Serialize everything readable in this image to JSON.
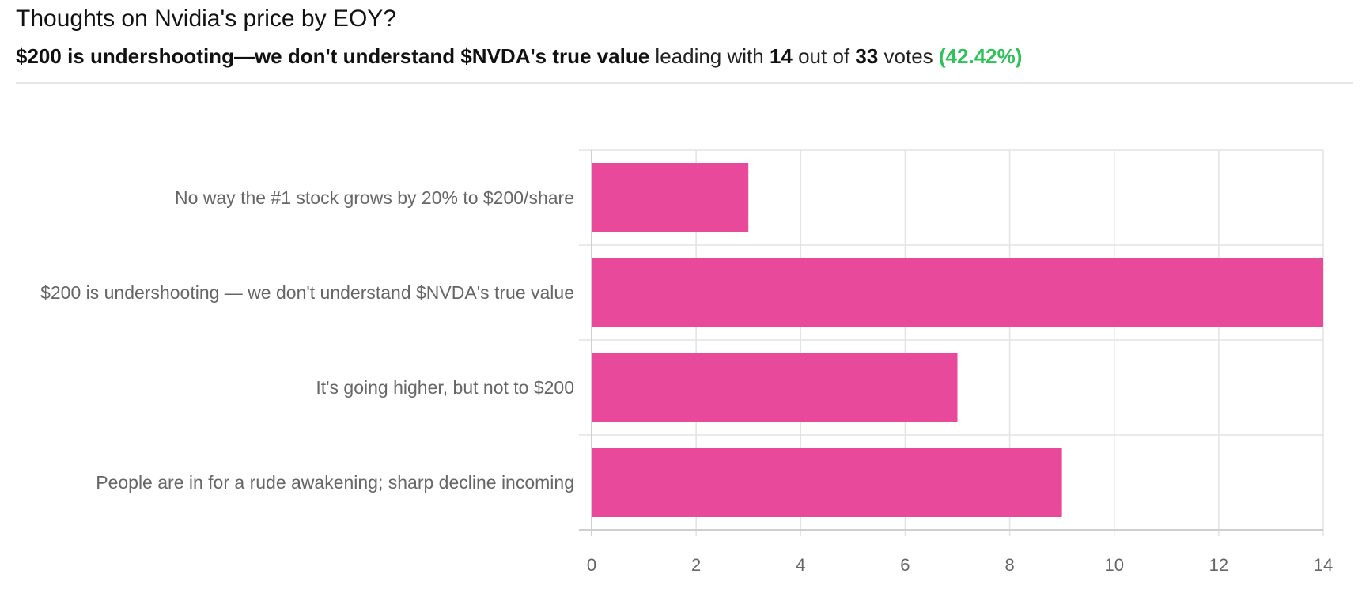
{
  "poll": {
    "title": "Thoughts on Nvidia's price by EOY?",
    "leader_option": "$200 is undershooting—we don't understand $NVDA's true value",
    "leading_with_text": " leading with ",
    "leader_votes": "14",
    "out_of_text": " out of ",
    "total_votes": "33",
    "votes_text": " votes ",
    "leader_percent": "(42.42%)"
  },
  "chart_data": {
    "type": "bar",
    "orientation": "horizontal",
    "categories": [
      "No way the #1 stock grows by 20% to $200/share",
      "$200 is undershooting — we don't understand $NVDA's true value",
      "It's going higher, but not to $200",
      "People are in for a rude awakening; sharp decline incoming"
    ],
    "values": [
      3,
      14,
      7,
      9
    ],
    "xlim": [
      0,
      14
    ],
    "xticks": [
      "0",
      "2",
      "4",
      "6",
      "8",
      "10",
      "12",
      "14"
    ],
    "grid": true,
    "bar_color": "#e9499a",
    "grid_color": "#e3e3e3",
    "accent_color": "#2fc25b"
  }
}
